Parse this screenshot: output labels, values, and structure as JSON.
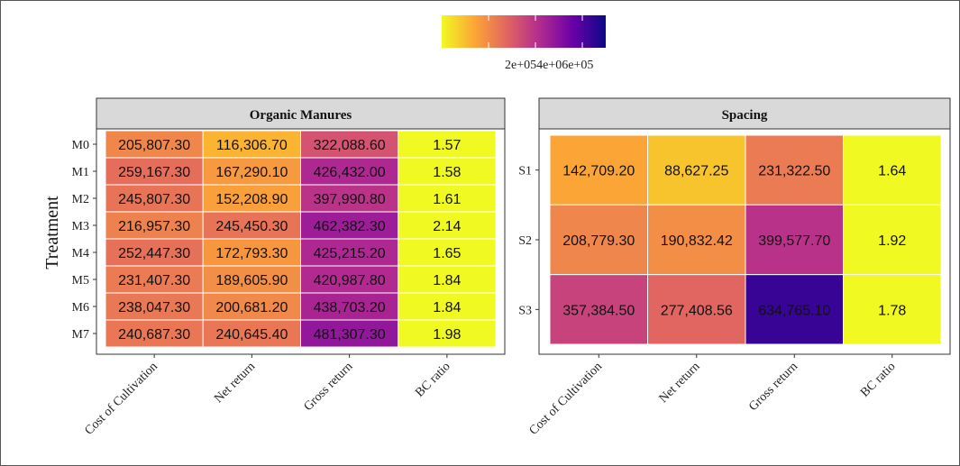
{
  "chart_data": {
    "type": "heatmap",
    "y_axis_title": "Treatment",
    "legend": {
      "position": "top",
      "tick_labels": [
        "2e+05",
        "4e+05",
        "6e+05"
      ],
      "tick_text": "2e+054e+06e+05",
      "colors": [
        "#f0f921",
        "#fca636",
        "#e16462",
        "#b12a90",
        "#6a00a8",
        "#0d0887"
      ],
      "range": [
        0,
        700000
      ]
    },
    "columns": [
      "Cost of Cultivation",
      "Net return",
      "Gross return",
      "BC ratio"
    ],
    "panels": [
      {
        "title": "Organic Manures",
        "rows": [
          "M0",
          "M1",
          "M2",
          "M3",
          "M4",
          "M5",
          "M6",
          "M7"
        ],
        "values": [
          [
            205807.3,
            116306.7,
            322088.6,
            1.57
          ],
          [
            259167.3,
            167290.1,
            426432.0,
            1.58
          ],
          [
            245807.3,
            152208.9,
            397990.8,
            1.61
          ],
          [
            216957.3,
            245450.3,
            462382.3,
            2.14
          ],
          [
            252447.3,
            172793.3,
            425215.2,
            1.65
          ],
          [
            231407.3,
            189605.9,
            420987.8,
            1.84
          ],
          [
            238047.3,
            200681.2,
            438703.2,
            1.84
          ],
          [
            240687.3,
            240645.4,
            481307.3,
            1.98
          ]
        ],
        "labels": [
          [
            "205,807.30",
            "116,306.70",
            "322,088.60",
            "1.57"
          ],
          [
            "259,167.30",
            "167,290.10",
            "426,432.00",
            "1.58"
          ],
          [
            "245,807.30",
            "152,208.90",
            "397,990.80",
            "1.61"
          ],
          [
            "216,957.30",
            "245,450.30",
            "462,382.30",
            "2.14"
          ],
          [
            "252,447.30",
            "172,793.30",
            "425,215.20",
            "1.65"
          ],
          [
            "231,407.30",
            "189,605.90",
            "420,987.80",
            "1.84"
          ],
          [
            "238,047.30",
            "200,681.20",
            "438,703.20",
            "1.84"
          ],
          [
            "240,687.30",
            "240,645.40",
            "481,307.30",
            "1.98"
          ]
        ]
      },
      {
        "title": "Spacing",
        "rows": [
          "S1",
          "S2",
          "S3"
        ],
        "values": [
          [
            142709.2,
            88627.25,
            231322.5,
            1.64
          ],
          [
            208779.3,
            190832.42,
            399577.7,
            1.92
          ],
          [
            357384.5,
            277408.56,
            634765.1,
            1.78
          ]
        ],
        "labels": [
          [
            "142,709.20",
            "88,627.25",
            "231,322.50",
            "1.64"
          ],
          [
            "208,779.30",
            "190,832.42",
            "399,577.70",
            "1.92"
          ],
          [
            "357,384.50",
            "277,408.56",
            "634,765.10",
            "1.78"
          ]
        ]
      }
    ]
  }
}
